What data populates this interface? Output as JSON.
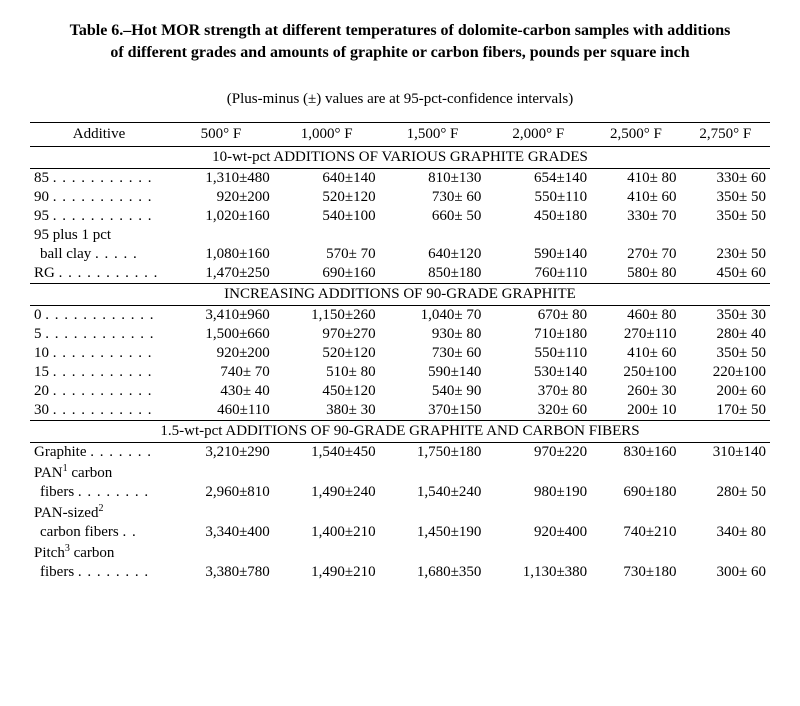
{
  "title_line1": "Table 6.–Hot MOR strength at different temperatures of dolomite-carbon samples with additions",
  "title_line2": "of different grades and amounts of graphite or carbon fibers, pounds per square inch",
  "subtitle": "(Plus-minus (±) values are at 95-pct-confidence intervals)",
  "columns": [
    "Additive",
    "500° F",
    "1,000° F",
    "1,500° F",
    "2,000° F",
    "2,500° F",
    "2,750° F"
  ],
  "sections": [
    {
      "header": "10-wt-pct ADDITIONS OF VARIOUS GRAPHITE GRADES",
      "rows": [
        {
          "label": "85",
          "dots": ". . . . . . . . . . .",
          "values": [
            "1,310±480",
            "640±140",
            "810±130",
            "654±140",
            "410± 80",
            "330± 60"
          ]
        },
        {
          "label": "90",
          "dots": ". . . . . . . . . . .",
          "values": [
            "920±200",
            "520±120",
            "730± 60",
            "550±110",
            "410± 60",
            "350± 50"
          ]
        },
        {
          "label": "95",
          "dots": ". . . . . . . . . . .",
          "values": [
            "1,020±160",
            "540±100",
            "660± 50",
            "450±180",
            "330± 70",
            "350± 50"
          ]
        },
        {
          "label": "95 plus 1 pct",
          "dots": "",
          "values": [
            "",
            "",
            "",
            "",
            "",
            ""
          ],
          "no_data": true
        },
        {
          "label": "ball clay",
          "dots": ". . . . .",
          "values": [
            "1,080±160",
            "570± 70",
            "640±120",
            "590±140",
            "270± 70",
            "230± 50"
          ],
          "continuation": true
        },
        {
          "label": "RG",
          "dots": ". . . . . . . . . . .",
          "values": [
            "1,470±250",
            "690±160",
            "850±180",
            "760±110",
            "580± 80",
            "450± 60"
          ]
        }
      ]
    },
    {
      "header": "INCREASING ADDITIONS OF 90-GRADE GRAPHITE",
      "rows": [
        {
          "label": "0",
          "dots": ". . . . . . . . . . . .",
          "values": [
            "3,410±960",
            "1,150±260",
            "1,040± 70",
            "670± 80",
            "460± 80",
            "350± 30"
          ]
        },
        {
          "label": "5",
          "dots": ". . . . . . . . . . . .",
          "values": [
            "1,500±660",
            "970±270",
            "930± 80",
            "710±180",
            "270±110",
            "280± 40"
          ]
        },
        {
          "label": "10",
          "dots": ". . . . . . . . . . .",
          "values": [
            "920±200",
            "520±120",
            "730± 60",
            "550±110",
            "410± 60",
            "350± 50"
          ]
        },
        {
          "label": "15",
          "dots": ". . . . . . . . . . .",
          "values": [
            "740± 70",
            "510± 80",
            "590±140",
            "530±140",
            "250±100",
            "220±100"
          ]
        },
        {
          "label": "20",
          "dots": ". . . . . . . . . . .",
          "values": [
            "430± 40",
            "450±120",
            "540± 90",
            "370± 80",
            "260± 30",
            "200± 60"
          ]
        },
        {
          "label": "30",
          "dots": ". . . . . . . . . . .",
          "values": [
            "460±110",
            "380± 30",
            "370±150",
            "320± 60",
            "200± 10",
            "170± 50"
          ]
        }
      ]
    },
    {
      "header": "1.5-wt-pct ADDITIONS OF 90-GRADE GRAPHITE AND CARBON FIBERS",
      "rows": [
        {
          "label": "Graphite",
          "dots": ". . . . . . .",
          "values": [
            "3,210±290",
            "1,540±450",
            "1,750±180",
            "970±220",
            "830±160",
            "310±140"
          ]
        },
        {
          "label_html": "PAN<sup>1</sup> carbon",
          "dots": "",
          "values": [
            "",
            "",
            "",
            "",
            "",
            ""
          ],
          "no_data": true
        },
        {
          "label": "fibers",
          "dots": ". . . . . . . .",
          "values": [
            "2,960±810",
            "1,490±240",
            "1,540±240",
            "980±190",
            "690±180",
            "280± 50"
          ],
          "continuation": true
        },
        {
          "label_html": "PAN-sized<sup>2</sup>",
          "dots": "",
          "values": [
            "",
            "",
            "",
            "",
            "",
            ""
          ],
          "no_data": true
        },
        {
          "label": "carbon fibers",
          "dots": ". .",
          "values": [
            "3,340±400",
            "1,400±210",
            "1,450±190",
            "920±400",
            "740±210",
            "340± 80"
          ],
          "continuation": true
        },
        {
          "label_html": "Pitch<sup>3</sup> carbon",
          "dots": "",
          "values": [
            "",
            "",
            "",
            "",
            "",
            ""
          ],
          "no_data": true
        },
        {
          "label": "fibers",
          "dots": ". . . . . . . .",
          "values": [
            "3,380±780",
            "1,490±210",
            "1,680±350",
            "1,130±380",
            "730±180",
            "300± 60"
          ],
          "continuation": true
        }
      ]
    }
  ]
}
